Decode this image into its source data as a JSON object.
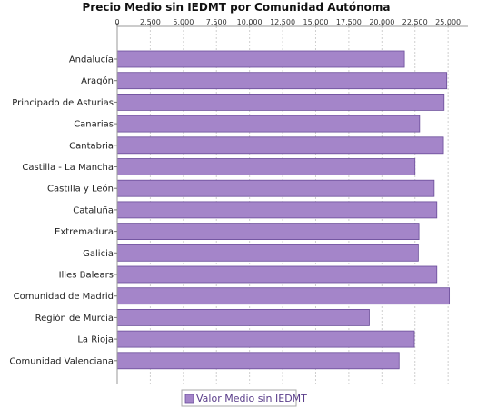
{
  "chart_data": {
    "type": "bar",
    "orientation": "horizontal",
    "title": "Precio Medio sin IEDMT por Comunidad Autónoma",
    "xlabel": "",
    "ylabel": "",
    "xlim": [
      0,
      26500
    ],
    "x_ticks": [
      "0",
      "2.500",
      "5.000",
      "7.500",
      "10.000",
      "12.500",
      "15.000",
      "17.500",
      "20.000",
      "22.500",
      "25.000"
    ],
    "x_tick_values": [
      0,
      2500,
      5000,
      7500,
      10000,
      12500,
      15000,
      17500,
      20000,
      22500,
      25000
    ],
    "x_axis_position": "top",
    "grid": true,
    "legend_position": "bottom-center",
    "bar_color": "#a485c9",
    "bar_edge_color": "#6a4c99",
    "categories": [
      "Andalucía",
      "Aragón",
      "Principado de Asturias",
      "Canarias",
      "Cantabria",
      "Castilla - La Mancha",
      "Castilla y León",
      "Cataluña",
      "Extremadura",
      "Galicia",
      "Illes Balears",
      "Comunidad de Madrid",
      "Región de Murcia",
      "La Rioja",
      "Comunidad Valenciana"
    ],
    "series": [
      {
        "name": "Valor Medio sin IEDMT",
        "values": [
          21700,
          24900,
          24700,
          22850,
          24650,
          22500,
          23950,
          24150,
          22800,
          22750,
          24150,
          25100,
          19050,
          22450,
          21300
        ]
      }
    ]
  }
}
